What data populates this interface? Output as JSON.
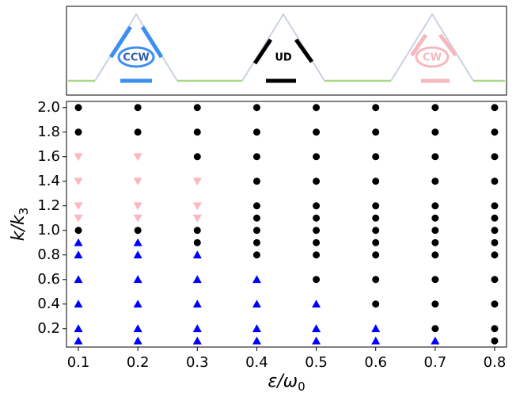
{
  "chart_data": {
    "type": "scatter",
    "xlabel": "ε/ω",
    "xlabel_sub": "0",
    "ylabel": "k/k",
    "ylabel_sub": "3",
    "xlim": [
      0.08,
      0.82
    ],
    "xticks": [
      0.1,
      0.2,
      0.3,
      0.4,
      0.5,
      0.6,
      0.7,
      0.8
    ],
    "ylim": [
      0.05,
      2.05
    ],
    "yticks": [
      0.2,
      0.4,
      0.6,
      0.8,
      {
        "value": 1,
        "label": "1.0"
      },
      1.2,
      1.4,
      1.6,
      1.8,
      {
        "value": 2,
        "label": "2.0"
      }
    ],
    "series": [
      {
        "name": "CCW",
        "color": "#0000ff",
        "marker": "triangle-up",
        "x": [
          0.1,
          0.1,
          0.1,
          0.1,
          0.1,
          0.1,
          0.2,
          0.2,
          0.2,
          0.2,
          0.2,
          0.2,
          0.3,
          0.3,
          0.3,
          0.3,
          0.3,
          0.4,
          0.4,
          0.4,
          0.4,
          0.5,
          0.5,
          0.5,
          0.6,
          0.6,
          0.7
        ],
        "values": [
          0.9,
          0.8,
          0.6,
          0.4,
          0.2,
          0.1,
          0.9,
          0.8,
          0.6,
          0.4,
          0.2,
          0.1,
          0.8,
          0.6,
          0.4,
          0.2,
          0.1,
          0.6,
          0.4,
          0.2,
          0.1,
          0.4,
          0.2,
          0.1,
          0.2,
          0.1,
          0.1
        ]
      },
      {
        "name": "CW",
        "color": "#ffb6c1",
        "marker": "triangle-down",
        "x": [
          0.1,
          0.1,
          0.1,
          0.1,
          0.2,
          0.2,
          0.2,
          0.2,
          0.3,
          0.3,
          0.3
        ],
        "values": [
          1.6,
          1.4,
          1.2,
          1.1,
          1.6,
          1.4,
          1.2,
          1.1,
          1.4,
          1.2,
          1.1
        ]
      },
      {
        "name": "UD",
        "color": "#000000",
        "marker": "circle",
        "x": [
          0.1,
          0.1,
          0.1,
          0.2,
          0.2,
          0.2,
          0.3,
          0.3,
          0.3,
          0.3,
          0.3,
          0.4,
          0.4,
          0.4,
          0.4,
          0.4,
          0.4,
          0.4,
          0.4,
          0.4,
          0.5,
          0.5,
          0.5,
          0.5,
          0.5,
          0.5,
          0.5,
          0.5,
          0.5,
          0.5,
          0.6,
          0.6,
          0.6,
          0.6,
          0.6,
          0.6,
          0.6,
          0.6,
          0.6,
          0.6,
          0.6,
          0.7,
          0.7,
          0.7,
          0.7,
          0.7,
          0.7,
          0.7,
          0.7,
          0.7,
          0.7,
          0.7,
          0.7,
          0.8,
          0.8,
          0.8,
          0.8,
          0.8,
          0.8,
          0.8,
          0.8,
          0.8,
          0.8,
          0.8,
          0.8,
          0.8
        ],
        "values": [
          2.0,
          1.8,
          1.0,
          2.0,
          1.8,
          1.0,
          2.0,
          1.8,
          1.6,
          1.0,
          0.9,
          2.0,
          1.8,
          1.6,
          1.4,
          1.2,
          1.1,
          1.0,
          0.9,
          0.8,
          2.0,
          1.8,
          1.6,
          1.4,
          1.2,
          1.1,
          1.0,
          0.9,
          0.8,
          0.6,
          2.0,
          1.8,
          1.6,
          1.4,
          1.2,
          1.1,
          1.0,
          0.9,
          0.8,
          0.6,
          0.4,
          2.0,
          1.8,
          1.6,
          1.4,
          1.2,
          1.1,
          1.0,
          0.9,
          0.8,
          0.6,
          0.4,
          0.2,
          2.0,
          1.8,
          1.6,
          1.4,
          1.2,
          1.1,
          1.0,
          0.9,
          0.8,
          0.6,
          0.4,
          0.2,
          0.1
        ]
      }
    ]
  }
}
